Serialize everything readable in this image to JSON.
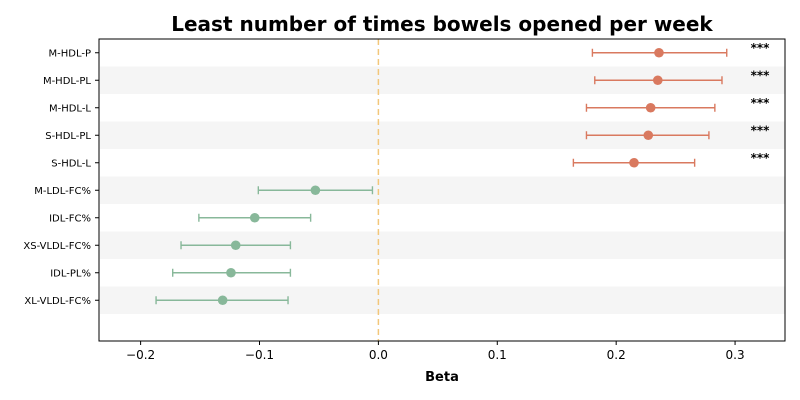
{
  "chart_data": {
    "type": "forest",
    "title": "Least number of times bowels opened per week",
    "xlabel": "Beta",
    "ylabel": "",
    "xlim": [
      -0.235,
      0.342
    ],
    "xticks": [
      -0.2,
      -0.1,
      0.0,
      0.1,
      0.2,
      0.3
    ],
    "xtick_labels": [
      "−0.2",
      "−0.1",
      "0.0",
      "0.1",
      "0.2",
      "0.3"
    ],
    "reference_line": 0.0,
    "grid": false,
    "alternating_row_shading": true,
    "colors": {
      "positive": "#d9795f",
      "negative": "#88b89a",
      "reference": "#f3c77a",
      "shade": "#f5f5f5"
    },
    "significance_marker": "***",
    "rows": [
      {
        "label": "M-HDL-P",
        "beta": 0.236,
        "ci_low": 0.18,
        "ci_high": 0.293,
        "sig": "***"
      },
      {
        "label": "M-HDL-PL",
        "beta": 0.235,
        "ci_low": 0.182,
        "ci_high": 0.289,
        "sig": "***"
      },
      {
        "label": "M-HDL-L",
        "beta": 0.229,
        "ci_low": 0.175,
        "ci_high": 0.283,
        "sig": "***"
      },
      {
        "label": "S-HDL-PL",
        "beta": 0.227,
        "ci_low": 0.175,
        "ci_high": 0.278,
        "sig": "***"
      },
      {
        "label": "S-HDL-L",
        "beta": 0.215,
        "ci_low": 0.164,
        "ci_high": 0.266,
        "sig": "***"
      },
      {
        "label": "M-LDL-FC%",
        "beta": -0.053,
        "ci_low": -0.101,
        "ci_high": -0.005,
        "sig": ""
      },
      {
        "label": "IDL-FC%",
        "beta": -0.104,
        "ci_low": -0.151,
        "ci_high": -0.057,
        "sig": ""
      },
      {
        "label": "XS-VLDL-FC%",
        "beta": -0.12,
        "ci_low": -0.166,
        "ci_high": -0.074,
        "sig": ""
      },
      {
        "label": "IDL-PL%",
        "beta": -0.124,
        "ci_low": -0.173,
        "ci_high": -0.074,
        "sig": ""
      },
      {
        "label": "XL-VLDL-FC%",
        "beta": -0.131,
        "ci_low": -0.187,
        "ci_high": -0.076,
        "sig": ""
      }
    ]
  }
}
